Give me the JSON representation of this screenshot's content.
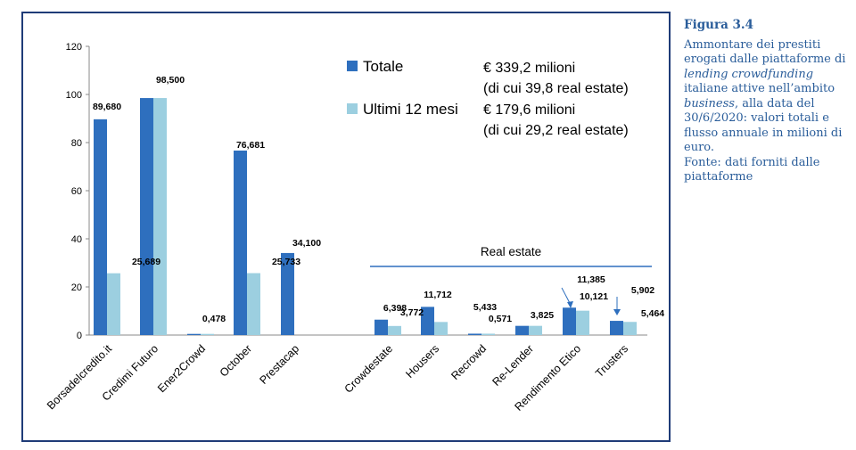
{
  "chart_data": {
    "type": "bar",
    "ylim": [
      0,
      120
    ],
    "yticks": [
      0,
      20,
      40,
      60,
      80,
      100,
      120
    ],
    "categories": [
      "Borsadelcredito.it",
      "Credimi Futuro",
      "Ener2Crowd",
      "October",
      "Prestacap",
      "Crowdestate",
      "Housers",
      "Recrowd",
      "Re-Lender",
      "Rendimento Etico",
      "Trusters"
    ],
    "series": [
      {
        "name": "Totale",
        "color": "#2e6fbe",
        "values": [
          89.68,
          98.5,
          0.478,
          76.681,
          34.1,
          6.398,
          11.712,
          0.571,
          3.825,
          11.385,
          5.902
        ],
        "labels": [
          "89,680",
          "98,500",
          "0,478",
          "76,681",
          "34,100",
          "6,398",
          "11,712",
          "0,571",
          "3,825",
          "11,385",
          "5,902"
        ]
      },
      {
        "name": "Ultimi 12 mesi",
        "color": "#9ccfe0",
        "values": [
          25.689,
          98.5,
          0.478,
          25.733,
          0,
          3.772,
          5.433,
          0.571,
          3.825,
          10.121,
          5.464
        ],
        "labels": [
          "25,689",
          "",
          "",
          "25,733",
          "",
          "3,772",
          "5,433",
          "",
          "",
          "10,121",
          "5,464"
        ]
      }
    ],
    "legend_notes": [
      [
        "€ 339,2 milioni",
        "(di cui 39,8 real estate)"
      ],
      [
        "€ 179,6 milioni",
        "(di cui 29,2 real estate)"
      ]
    ],
    "group_label": "Real estate"
  },
  "caption": {
    "title": "Figura 3.4",
    "line1": "Ammontare dei prestiti erogati dalle piattaforme di ",
    "italic1": "lending crowdfunding",
    "line2": " italiane attive nell’ambito ",
    "italic2": "business",
    "line3": ", alla data del 30/6/2020: valori totali e flusso annuale in milioni di euro.",
    "source": "Fonte: dati forniti dalle piattaforme"
  }
}
